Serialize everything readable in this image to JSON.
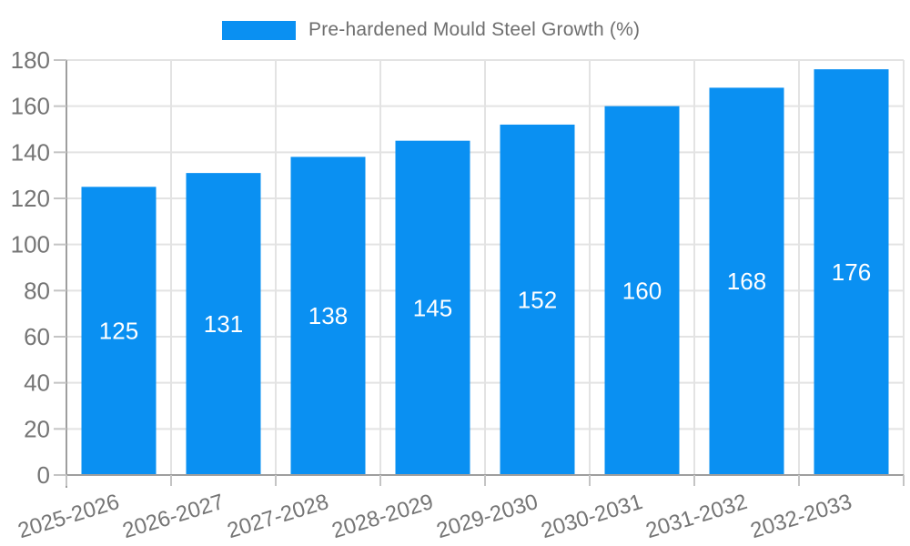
{
  "chart_data": {
    "type": "bar",
    "legend_label": "Pre-hardened Mould Steel Growth (%)",
    "categories": [
      "2025-2026",
      "2026-2027",
      "2027-2028",
      "2028-2029",
      "2029-2030",
      "2030-2031",
      "2031-2032",
      "2032-2033"
    ],
    "values": [
      125,
      131,
      138,
      145,
      152,
      160,
      168,
      176
    ],
    "xlabel": "",
    "ylabel": "",
    "ylim": [
      0,
      180
    ],
    "ytick_step": 20,
    "ytick_labels": [
      "0",
      "20",
      "40",
      "60",
      "80",
      "100",
      "120",
      "140",
      "160",
      "180"
    ],
    "grid": "horizontal-and-vertical",
    "legend_position": "top-center",
    "value_labels_position": "inside-center",
    "colors": {
      "bar": "#0A90F2",
      "grid_line": "#e3e3e3",
      "axis_line": "#9e9e9e",
      "tick_mark": "#c4c4c4",
      "axis_label": "#757575",
      "legend_text": "#6e6e6e",
      "value_label": "#ffffff",
      "background": "#ffffff"
    }
  }
}
